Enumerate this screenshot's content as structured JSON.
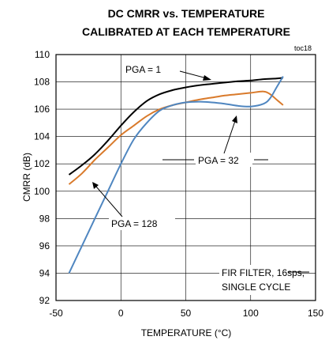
{
  "chart_data": {
    "type": "line",
    "title_line1": "DC CMRR vs. TEMPERATURE",
    "title_line2": "CALIBRATED AT EACH TEMPERATURE",
    "figure_code": "toc18",
    "xlabel": "TEMPERATURE (°C)",
    "ylabel": "CMRR (dB)",
    "xlim": [
      -50,
      150
    ],
    "ylim": [
      92,
      110
    ],
    "x_ticks": [
      -50,
      0,
      50,
      100,
      150
    ],
    "y_ticks": [
      92,
      94,
      96,
      98,
      100,
      102,
      104,
      106,
      108,
      110
    ],
    "grid": true,
    "series": [
      {
        "name": "PGA = 1",
        "color": "#000000",
        "x": [
          -40,
          -30,
          -20,
          -10,
          0,
          10,
          20,
          30,
          40,
          50,
          60,
          70,
          80,
          90,
          100,
          110,
          120,
          125
        ],
        "y": [
          101.2,
          101.9,
          102.7,
          103.7,
          104.8,
          105.8,
          106.6,
          107.1,
          107.4,
          107.6,
          107.75,
          107.85,
          107.95,
          108.05,
          108.1,
          108.2,
          108.25,
          108.3
        ]
      },
      {
        "name": "PGA = 32",
        "color": "#d97a2b",
        "x": [
          -40,
          -30,
          -20,
          -10,
          0,
          10,
          20,
          30,
          40,
          50,
          60,
          70,
          80,
          90,
          100,
          110,
          115,
          120,
          125
        ],
        "y": [
          100.5,
          101.3,
          102.3,
          103.2,
          104.1,
          104.8,
          105.5,
          106.0,
          106.3,
          106.5,
          106.7,
          106.85,
          107.0,
          107.1,
          107.2,
          107.3,
          107.1,
          106.7,
          106.3
        ]
      },
      {
        "name": "PGA = 128",
        "color": "#4f86c0",
        "x": [
          -40,
          -30,
          -20,
          -10,
          0,
          10,
          20,
          30,
          40,
          50,
          60,
          70,
          80,
          90,
          100,
          110,
          115,
          120,
          125
        ],
        "y": [
          94.0,
          96.0,
          98.0,
          100.0,
          102.0,
          103.8,
          105.0,
          105.9,
          106.3,
          106.5,
          106.55,
          106.5,
          106.4,
          106.25,
          106.2,
          106.4,
          106.8,
          107.6,
          108.4
        ]
      }
    ],
    "annotations": [
      {
        "text": "PGA = 1",
        "series": "PGA = 1"
      },
      {
        "text": "PGA = 32",
        "series": "PGA = 32"
      },
      {
        "text": "PGA = 128",
        "series": "PGA = 128"
      },
      {
        "text": "FIR FILTER, 16sps,"
      },
      {
        "text": "SINGLE CYCLE"
      }
    ]
  }
}
